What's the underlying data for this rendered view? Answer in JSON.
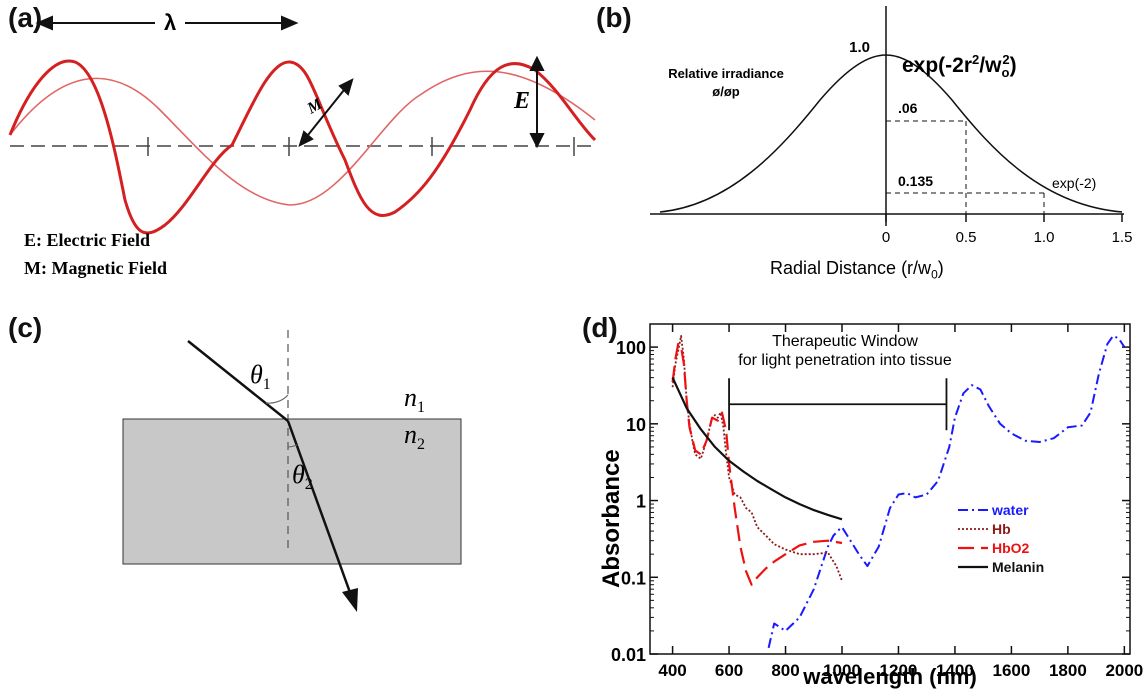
{
  "panels": {
    "a": {
      "label": "(a)",
      "lambda_symbol": "λ",
      "e_marker": "E",
      "m_marker": "M",
      "legend_electric": "E: Electric Field",
      "legend_magnetic": "M: Magnetic Field"
    },
    "b": {
      "label": "(b)",
      "formula_base": "exp(-2r",
      "formula_sup1": "2",
      "formula_mid": "/w",
      "formula_sub": "o",
      "formula_sup2": "2",
      "formula_end": ")",
      "ylabel_line1": "Relative irradiance",
      "ylabel_line2": "ø/øp",
      "peak_label": "1.0",
      "level1_label": ".06",
      "level2_label": "0.135",
      "exp_label": "exp(-2)",
      "xlabel_main": "Radial Distance (r/w",
      "xlabel_sub": "0",
      "xlabel_end": ")",
      "x_ticks": [
        "0",
        "0.5",
        "1.0",
        "1.5"
      ]
    },
    "c": {
      "label": "(c)",
      "theta1": "θ",
      "theta1_sub": "1",
      "theta2": "θ",
      "theta2_sub": "2",
      "n1": "n",
      "n1_sub": "1",
      "n2": "n",
      "n2_sub": "2"
    },
    "d": {
      "label": "(d)",
      "annotation_line1": "Therapeutic Window",
      "annotation_line2": "for light penetration into tissue",
      "chart_data": {
        "type": "line",
        "xlabel": "wavelength (nm)",
        "ylabel": "Absorbance",
        "y_scale": "log",
        "xlim": [
          320,
          2020
        ],
        "ylim": [
          0.01,
          200
        ],
        "x_ticks": [
          "400",
          "600",
          "800",
          "1000",
          "1200",
          "1400",
          "1600",
          "1800",
          "2000"
        ],
        "y_ticks": [
          "0.01",
          "0.1",
          "1",
          "10",
          "100"
        ],
        "legend_placement": "bottom-right",
        "series": [
          {
            "name": "water",
            "color": "#1a1aff",
            "style": "dash-dot",
            "x": [
              740,
              760,
              800,
              850,
              900,
              930,
              950,
              970,
              990,
              1000,
              1030,
              1060,
              1090,
              1130,
              1170,
              1200,
              1230,
              1260,
              1300,
              1340,
              1380,
              1400,
              1430,
              1460,
              1490,
              1520,
              1560,
              1600,
              1650,
              1700,
              1750,
              1800,
              1850,
              1880,
              1910,
              1940,
              1960,
              1980,
              2000
            ],
            "y": [
              0.012,
              0.025,
              0.02,
              0.03,
              0.07,
              0.15,
              0.25,
              0.35,
              0.42,
              0.45,
              0.3,
              0.2,
              0.14,
              0.25,
              0.8,
              1.2,
              1.25,
              1.1,
              1.2,
              1.8,
              5,
              12,
              25,
              32,
              28,
              17,
              10,
              7.5,
              6,
              5.8,
              6.5,
              9,
              9.5,
              14,
              45,
              110,
              140,
              130,
              100
            ]
          },
          {
            "name": "Hb",
            "color": "#8b1a1a",
            "style": "dotted",
            "x": [
              400,
              410,
              420,
              430,
              440,
              450,
              460,
              470,
              480,
              500,
              520,
              540,
              550,
              560,
              570,
              580,
              590,
              600,
              620,
              640,
              660,
              680,
              700,
              730,
              760,
              800,
              850,
              900,
              950,
              980,
              1000
            ],
            "y": [
              30,
              60,
              90,
              140,
              70,
              20,
              10,
              6,
              4,
              3.5,
              6,
              12,
              13,
              12,
              14,
              9,
              4,
              2,
              1.2,
              1.1,
              0.8,
              0.7,
              0.45,
              0.35,
              0.27,
              0.23,
              0.2,
              0.2,
              0.21,
              0.14,
              0.09
            ]
          },
          {
            "name": "HbO2",
            "color": "#ee1111",
            "style": "dashed",
            "x": [
              400,
              410,
              420,
              430,
              440,
              450,
              460,
              480,
              500,
              520,
              540,
              560,
              575,
              590,
              600,
              620,
              640,
              660,
              680,
              700,
              730,
              760,
              800,
              850,
              900,
              950,
              1000
            ],
            "y": [
              35,
              70,
              110,
              100,
              60,
              20,
              9,
              4.5,
              4,
              6,
              12,
              11,
              14,
              8,
              3,
              0.8,
              0.25,
              0.12,
              0.08,
              0.1,
              0.13,
              0.16,
              0.2,
              0.26,
              0.29,
              0.3,
              0.28
            ]
          },
          {
            "name": "Melanin",
            "color": "#111111",
            "style": "solid",
            "x": [
              400,
              450,
              500,
              550,
              600,
              650,
              700,
              750,
              800,
              850,
              900,
              950,
              1000
            ],
            "y": [
              40,
              16,
              8.5,
              5,
              3.3,
              2.4,
              1.8,
              1.4,
              1.1,
              0.9,
              0.75,
              0.65,
              0.57
            ]
          }
        ]
      }
    }
  }
}
